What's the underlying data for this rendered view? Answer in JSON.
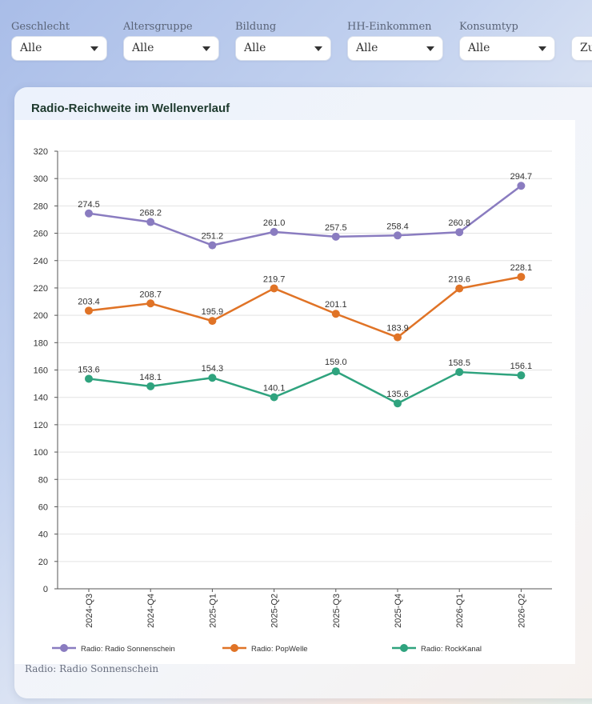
{
  "filters": [
    {
      "label": "Geschlecht",
      "value": "Alle"
    },
    {
      "label": "Altersgruppe",
      "value": "Alle"
    },
    {
      "label": "Bildung",
      "value": "Alle"
    },
    {
      "label": "HH-Einkommen",
      "value": "Alle"
    },
    {
      "label": "Konsumtyp",
      "value": "Alle"
    },
    {
      "label": "",
      "value": "Zu"
    }
  ],
  "card": {
    "title": "Radio-Reichweite im Wellenverlauf",
    "footnote": "Radio: Radio Sonnenschein"
  },
  "chart_data": {
    "type": "line",
    "title": "Radio-Reichweite im Wellenverlauf",
    "categories": [
      "2024-Q3",
      "2024-Q4",
      "2025-Q1",
      "2025-Q2",
      "2025-Q3",
      "2025-Q4",
      "2026-Q1",
      "2026-Q2"
    ],
    "ylim": [
      0,
      320
    ],
    "yticks": [
      0,
      20,
      40,
      60,
      80,
      100,
      120,
      140,
      160,
      180,
      200,
      220,
      240,
      260,
      280,
      300,
      320
    ],
    "grid": true,
    "legend_position": "bottom",
    "series": [
      {
        "name": "Radio: Radio Sonnenschein",
        "color": "#8a7cc0",
        "values": [
          274.5,
          268.2,
          251.2,
          261.0,
          257.5,
          258.4,
          260.8,
          294.7
        ]
      },
      {
        "name": "Radio: PopWelle",
        "color": "#e07326",
        "values": [
          203.4,
          208.7,
          195.9,
          219.7,
          201.1,
          183.9,
          219.6,
          228.1
        ]
      },
      {
        "name": "Radio: RockKanal",
        "color": "#2fa37e",
        "values": [
          153.6,
          148.1,
          154.3,
          140.1,
          159.0,
          135.6,
          158.5,
          156.1
        ]
      }
    ]
  }
}
